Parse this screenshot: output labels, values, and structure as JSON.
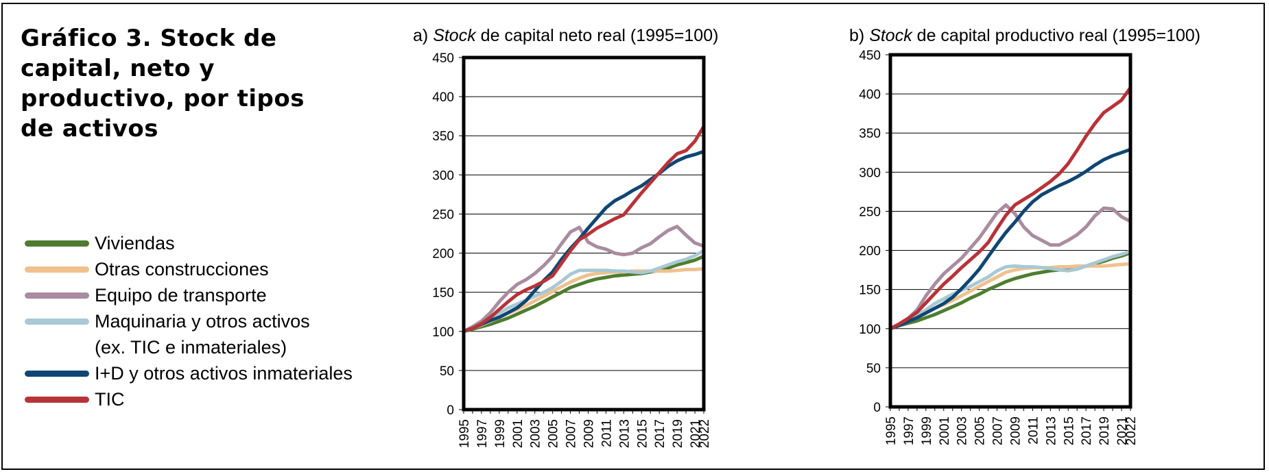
{
  "title": "Gráfico 3. Stock de capital, neto y productivo, por tipos de activos",
  "title_lines": [
    "Gráfico 3. Stock de",
    "capital, neto y",
    "productivo, por tipos",
    "de activos"
  ],
  "legend": [
    {
      "label": "Viviendas",
      "color": "#4e7d2f"
    },
    {
      "label": "Otras construcciones",
      "color": "#f0c18e"
    },
    {
      "label": "Equipo de transporte",
      "color": "#a98c9f"
    },
    {
      "label": "Maquinaria y otros activos",
      "sub": "(ex. TIC e inmateriales)",
      "color": "#a9c8d4"
    },
    {
      "label": "I+D y otros activos inmateriales",
      "color": "#0f4673"
    },
    {
      "label": "TIC",
      "color": "#b73338"
    }
  ],
  "chart_data": [
    {
      "type": "line",
      "title_prefix": "a) ",
      "title_italic": "Stock",
      "title_rest": " de capital neto real (1995=100)",
      "ylim": [
        0,
        450
      ],
      "yticks": [
        "0",
        "50",
        "100",
        "150",
        "200",
        "250",
        "300",
        "350",
        "400",
        "450"
      ],
      "x_tick_labels": [
        "1995",
        "1997",
        "1999",
        "2001",
        "2003",
        "2005",
        "2007",
        "2009",
        "2011",
        "2013",
        "2015",
        "2017",
        "2019",
        "2021",
        "2022"
      ],
      "x_tick_years": [
        1995,
        1997,
        1999,
        2001,
        2003,
        2005,
        2007,
        2009,
        2011,
        2013,
        2015,
        2017,
        2019,
        2021,
        2022
      ],
      "xlim": [
        1995,
        2022
      ],
      "grid": true,
      "x": [
        1995,
        1996,
        1997,
        1998,
        1999,
        2000,
        2001,
        2002,
        2003,
        2004,
        2005,
        2006,
        2007,
        2008,
        2009,
        2010,
        2011,
        2012,
        2013,
        2014,
        2015,
        2016,
        2017,
        2018,
        2019,
        2020,
        2021,
        2022
      ],
      "series": [
        {
          "name": "Viviendas",
          "values": [
            100,
            103,
            106,
            109,
            113,
            117,
            122,
            127,
            132,
            138,
            144,
            150,
            156,
            160,
            164,
            167,
            169,
            171,
            172,
            173,
            174,
            176,
            178,
            181,
            185,
            188,
            191,
            196
          ]
        },
        {
          "name": "Otras construcciones",
          "values": [
            100,
            104,
            108,
            113,
            118,
            123,
            128,
            133,
            139,
            145,
            151,
            157,
            163,
            168,
            172,
            174,
            175,
            176,
            176,
            177,
            177,
            177,
            177,
            177,
            178,
            179,
            179,
            180
          ]
        },
        {
          "name": "Equipo de transporte",
          "values": [
            100,
            106,
            113,
            124,
            138,
            150,
            160,
            166,
            174,
            184,
            196,
            212,
            227,
            233,
            214,
            208,
            205,
            200,
            198,
            200,
            207,
            212,
            221,
            229,
            234,
            223,
            213,
            209
          ]
        },
        {
          "name": "Maquinaria y otros activos (ex. TIC e inmateriales)",
          "values": [
            100,
            104,
            109,
            116,
            123,
            130,
            135,
            140,
            145,
            150,
            156,
            164,
            173,
            178,
            178,
            178,
            178,
            177,
            177,
            176,
            175,
            177,
            181,
            185,
            189,
            192,
            197,
            203
          ]
        },
        {
          "name": "I+D y otros activos inmateriales",
          "values": [
            100,
            104,
            109,
            114,
            118,
            124,
            130,
            139,
            152,
            165,
            176,
            192,
            206,
            218,
            232,
            245,
            258,
            267,
            273,
            280,
            286,
            294,
            302,
            311,
            318,
            323,
            326,
            330
          ]
        },
        {
          "name": "TIC",
          "values": [
            100,
            104,
            110,
            118,
            128,
            138,
            147,
            153,
            158,
            164,
            171,
            187,
            203,
            217,
            224,
            232,
            238,
            244,
            249,
            263,
            277,
            290,
            303,
            316,
            327,
            331,
            343,
            362
          ]
        }
      ]
    },
    {
      "type": "line",
      "title_prefix": "b) ",
      "title_italic": "Stock",
      "title_rest": " de capital productivo real (1995=100)",
      "ylim": [
        0,
        450
      ],
      "yticks": [
        "0",
        "50",
        "100",
        "150",
        "200",
        "250",
        "300",
        "350",
        "400",
        "450"
      ],
      "x_tick_labels": [
        "1995",
        "1997",
        "1999",
        "2001",
        "2003",
        "2005",
        "2007",
        "2009",
        "2011",
        "2013",
        "2015",
        "2017",
        "2019",
        "2021",
        "2022"
      ],
      "x_tick_years": [
        1995,
        1997,
        1999,
        2001,
        2003,
        2005,
        2007,
        2009,
        2011,
        2013,
        2015,
        2017,
        2019,
        2021,
        2022
      ],
      "xlim": [
        1995,
        2022
      ],
      "grid": true,
      "x": [
        1995,
        1996,
        1997,
        1998,
        1999,
        2000,
        2001,
        2002,
        2003,
        2004,
        2005,
        2006,
        2007,
        2008,
        2009,
        2010,
        2011,
        2012,
        2013,
        2014,
        2015,
        2016,
        2017,
        2018,
        2019,
        2020,
        2021,
        2022
      ],
      "series": [
        {
          "name": "Viviendas",
          "values": [
            100,
            104,
            107,
            110,
            114,
            118,
            123,
            128,
            133,
            139,
            144,
            150,
            155,
            160,
            164,
            167,
            170,
            172,
            174,
            175,
            176,
            178,
            180,
            183,
            186,
            190,
            193,
            197
          ]
        },
        {
          "name": "Otras construcciones",
          "values": [
            100,
            104,
            109,
            114,
            120,
            126,
            131,
            136,
            142,
            148,
            154,
            160,
            166,
            172,
            175,
            177,
            178,
            178,
            178,
            179,
            179,
            180,
            180,
            180,
            180,
            181,
            182,
            183
          ]
        },
        {
          "name": "Equipo de transporte",
          "values": [
            100,
            106,
            113,
            124,
            142,
            157,
            170,
            180,
            190,
            203,
            216,
            232,
            248,
            258,
            247,
            230,
            219,
            213,
            207,
            207,
            213,
            220,
            230,
            244,
            254,
            253,
            243,
            237
          ]
        },
        {
          "name": "Maquinaria y otros activos (ex. TIC e inmateriales)",
          "values": [
            100,
            105,
            110,
            117,
            124,
            132,
            138,
            144,
            149,
            154,
            160,
            166,
            174,
            179,
            180,
            179,
            179,
            178,
            177,
            175,
            174,
            176,
            180,
            184,
            188,
            192,
            195,
            199
          ]
        },
        {
          "name": "I+D y otros activos inmateriales",
          "values": [
            100,
            104,
            109,
            114,
            120,
            126,
            132,
            140,
            151,
            163,
            176,
            192,
            208,
            223,
            236,
            250,
            262,
            271,
            277,
            283,
            288,
            294,
            301,
            309,
            316,
            321,
            325,
            329
          ]
        },
        {
          "name": "TIC",
          "values": [
            100,
            106,
            113,
            121,
            133,
            145,
            157,
            167,
            178,
            188,
            198,
            210,
            228,
            245,
            258,
            265,
            272,
            280,
            288,
            298,
            311,
            328,
            346,
            362,
            376,
            384,
            392,
            408
          ]
        }
      ]
    }
  ]
}
